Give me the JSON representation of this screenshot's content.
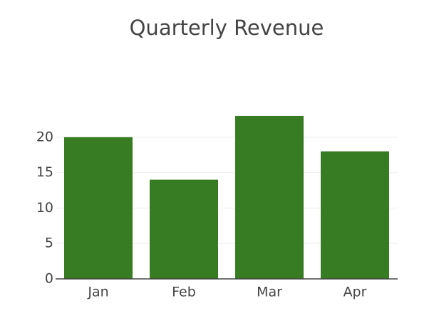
{
  "chart_data": {
    "type": "bar",
    "title": "Quarterly Revenue",
    "categories": [
      "Jan",
      "Feb",
      "Mar",
      "Apr"
    ],
    "values": [
      20,
      14,
      23,
      18
    ],
    "color": "#377b22",
    "ylim": [
      0,
      24.2
    ],
    "yticks": [
      0,
      5,
      10,
      15,
      20
    ],
    "grid": true
  }
}
